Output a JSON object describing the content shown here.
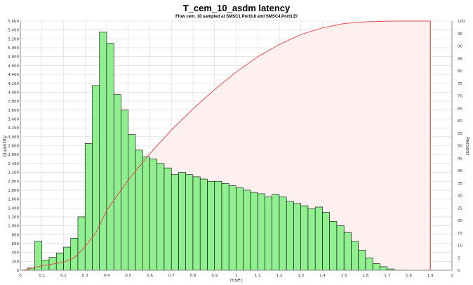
{
  "chart_data": {
    "type": "bar",
    "title": "T_cem_10_asdm latency",
    "subtitle": "Flow cem_10 sampled at SMSC1.Port3.8 and SMSC4.Port3.EI",
    "xlabel": "msec",
    "ylabel": "Quantity",
    "y2label": "Percent",
    "xlim": [
      0,
      2
    ],
    "ylim": [
      0,
      5600
    ],
    "y2lim": [
      0,
      100
    ],
    "x_ticks": [
      "0",
      "0.1",
      "0.2",
      "0.3",
      "0.4",
      "0.5",
      "0.6",
      "0.7",
      "0.8",
      "0.9",
      "1",
      "1.1",
      "1.2",
      "1.3",
      "1.4",
      "1.5",
      "1.6",
      "1.7",
      "1.8",
      "1.9",
      "2"
    ],
    "y_ticks": [
      "0",
      "200",
      "400",
      "600",
      "800",
      "1,000",
      "1,200",
      "1,400",
      "1,600",
      "1,800",
      "2,000",
      "2,200",
      "2,400",
      "2,600",
      "2,800",
      "3,000",
      "3,200",
      "3,400",
      "3,600",
      "3,800",
      "4,000",
      "4,200",
      "4,400",
      "4,600",
      "4,800",
      "5,000",
      "5,200",
      "5,400",
      "5,600"
    ],
    "y2_ticks": [
      "0",
      "5",
      "10",
      "15",
      "20",
      "25",
      "30",
      "35",
      "40",
      "45",
      "50",
      "55",
      "60",
      "65",
      "70",
      "75",
      "80",
      "85",
      "90",
      "95",
      "100"
    ],
    "grid": true,
    "bin_width": 0.03333,
    "bin_start": 0.0333,
    "series": [
      {
        "type": "histogram",
        "color": "#90f090",
        "edge_color": "#000000",
        "values": [
          50,
          650,
          230,
          290,
          390,
          520,
          720,
          1200,
          2850,
          4150,
          5350,
          5100,
          3950,
          3600,
          3050,
          2700,
          2550,
          2500,
          2400,
          2300,
          2150,
          2200,
          2150,
          2100,
          2050,
          2000,
          2000,
          1950,
          1900,
          1850,
          1800,
          1750,
          1720,
          1650,
          1700,
          1650,
          1550,
          1500,
          1450,
          1380,
          1420,
          1300,
          1100,
          1000,
          850,
          650,
          450,
          280,
          150,
          80,
          30,
          5
        ]
      },
      {
        "type": "cumulative",
        "axis": "right",
        "color": "#e05050",
        "fill": "#fff0f0",
        "x": [
          0.0,
          0.03,
          0.1,
          0.2,
          0.25,
          0.3,
          0.35,
          0.4,
          0.5,
          0.6,
          0.7,
          0.8,
          0.9,
          1.0,
          1.1,
          1.2,
          1.3,
          1.4,
          1.5,
          1.6,
          1.7,
          1.75,
          1.8,
          1.9
        ],
        "values": [
          0,
          0.3,
          1.8,
          3.2,
          5.0,
          9.5,
          15.0,
          24.0,
          36.2,
          46.8,
          56.3,
          64.8,
          72.5,
          79.5,
          85.7,
          90.6,
          94.6,
          97.3,
          99.0,
          99.7,
          99.95,
          100,
          100,
          100
        ]
      }
    ],
    "markers": [
      {
        "x": 1.9,
        "color": "#e05050"
      }
    ]
  }
}
